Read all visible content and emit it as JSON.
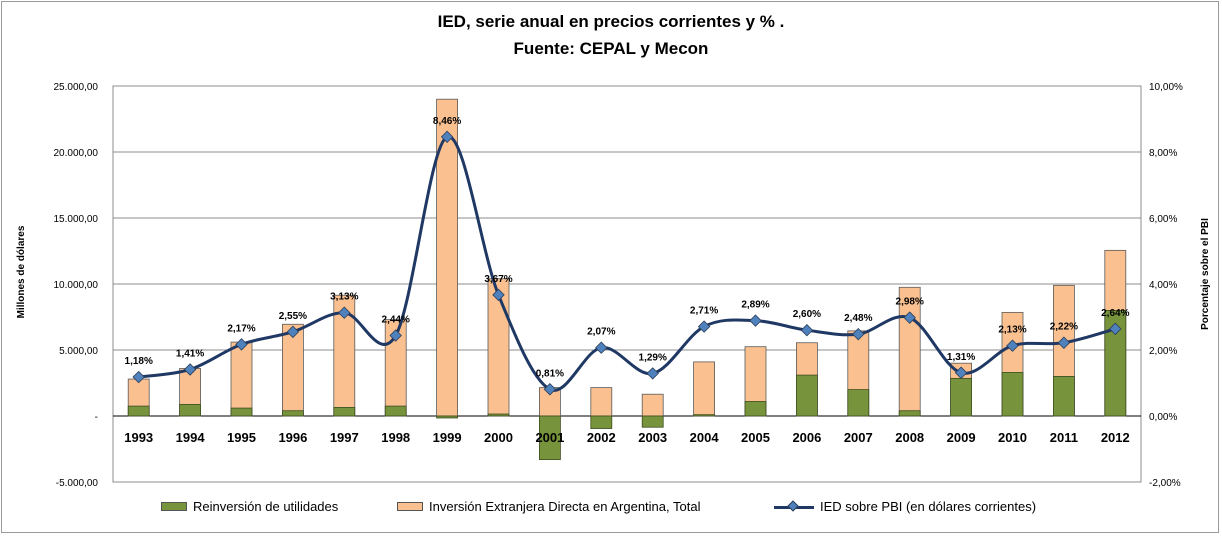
{
  "title_line1": "IED, serie anual  en precios corrientes y % .",
  "title_line2": "Fuente: CEPAL y Mecon",
  "colors": {
    "reinversion": "#77933c",
    "total": "#fac090",
    "line": "#1f3864",
    "marker": "#4f81bd"
  },
  "chart_data": {
    "type": "bar",
    "title": "IED, serie anual  en precios corrientes y % . Fuente: CEPAL y Mecon",
    "ylabel": "Millones de dólares",
    "y2label": "Porcentaje sobre el PBI",
    "ylim": [
      -5000,
      25000
    ],
    "y2lim": [
      -0.02,
      0.1
    ],
    "yticks": [
      "-5.000,00",
      "-",
      "5.000,00",
      "10.000,00",
      "15.000,00",
      "20.000,00",
      "25.000,00"
    ],
    "y2ticks": [
      "-2,00%",
      "0,00%",
      "2,00%",
      "4,00%",
      "6,00%",
      "8,00%",
      "10,00%"
    ],
    "grid": true,
    "legend_position": "bottom",
    "categories": [
      "1993",
      "1994",
      "1995",
      "1996",
      "1997",
      "1998",
      "1999",
      "2000",
      "2001",
      "2002",
      "2003",
      "2004",
      "2005",
      "2006",
      "2007",
      "2008",
      "2009",
      "2010",
      "2011",
      "2012"
    ],
    "series": [
      {
        "name": "Reinversión de utilidades",
        "kind": "bar",
        "values": [
          750,
          880,
          600,
          400,
          650,
          750,
          -150,
          150,
          -3300,
          -950,
          -850,
          100,
          1100,
          3100,
          2000,
          400,
          2850,
          3300,
          3000,
          8000
        ]
      },
      {
        "name": "Inversión Extranjera Directa en Argentina, Total",
        "kind": "bar",
        "values": [
          2800,
          3600,
          5600,
          6950,
          9150,
          7300,
          24000,
          10400,
          2150,
          2150,
          1650,
          4100,
          5250,
          5550,
          6450,
          9750,
          4000,
          7850,
          9900,
          12550
        ]
      },
      {
        "name": "IED sobre PBI (en dólares corrientes)",
        "kind": "line",
        "axis": "right",
        "values": [
          1.18,
          1.41,
          2.17,
          2.55,
          3.13,
          2.44,
          8.46,
          3.67,
          0.81,
          2.07,
          1.29,
          2.71,
          2.89,
          2.6,
          2.48,
          2.98,
          1.31,
          2.13,
          2.22,
          2.64
        ],
        "labels": [
          "1,18%",
          "1,41%",
          "2,17%",
          "2,55%",
          "3,13%",
          "2,44%",
          "8,46%",
          "3,67%",
          "0,81%",
          "2,07%",
          "1,29%",
          "2,71%",
          "2,89%",
          "2,60%",
          "2,48%",
          "2,98%",
          "1,31%",
          "2,13%",
          "2,22%",
          "2,64%"
        ]
      }
    ]
  },
  "legend": {
    "reinversion": "Reinversión de utilidades",
    "total": "Inversión Extranjera Directa en Argentina, Total",
    "line": "IED sobre PBI (en dólares corrientes)"
  }
}
